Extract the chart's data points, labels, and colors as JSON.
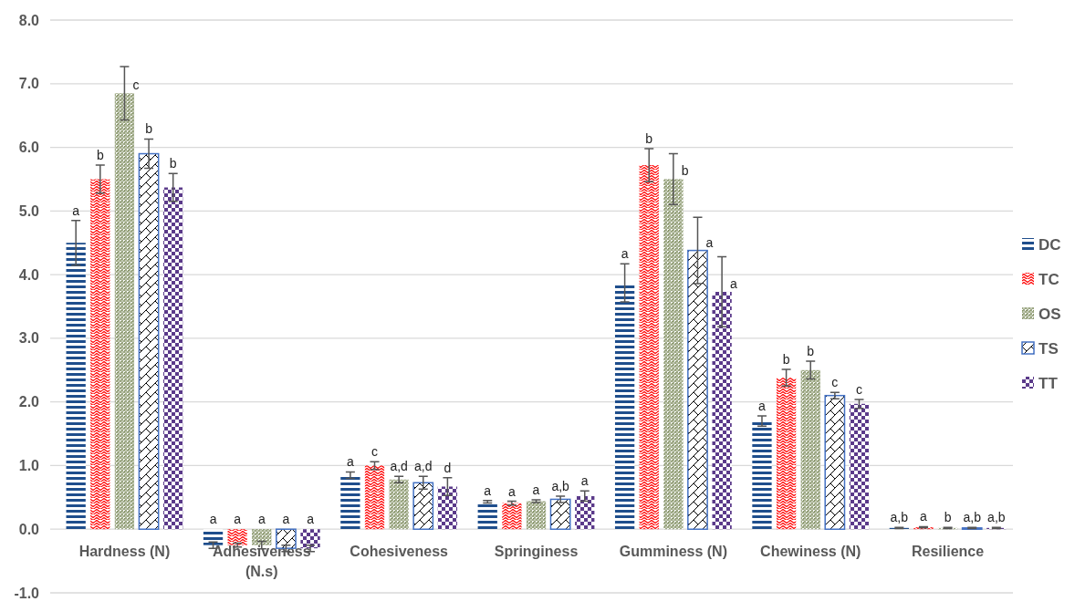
{
  "chart_data": {
    "type": "bar",
    "categories": [
      "Hardness (N)",
      "Adhesiveness (N.s)",
      "Cohesiveness",
      "Springiness",
      "Gumminess (N)",
      "Chewiness (N)",
      "Resilience"
    ],
    "series": [
      {
        "name": "DC",
        "color": "#1f4e8c",
        "values": [
          4.5,
          -0.25,
          0.85,
          0.43,
          3.87,
          1.7,
          0.02
        ],
        "errors": [
          0.35,
          0.05,
          0.05,
          0.02,
          0.3,
          0.08,
          0.01
        ],
        "value_labels": [
          "a",
          "a",
          "a",
          "a",
          "a",
          "a",
          "a,b"
        ]
      },
      {
        "name": "TC",
        "color": "#ff0000",
        "values": [
          5.5,
          -0.25,
          1.0,
          0.41,
          5.72,
          2.38,
          0.03
        ],
        "errors": [
          0.22,
          0.03,
          0.06,
          0.03,
          0.26,
          0.13,
          0.01
        ],
        "value_labels": [
          "b",
          "a",
          "c",
          "a",
          "b",
          "b",
          "a"
        ]
      },
      {
        "name": "OS",
        "color": "#7b8a5a",
        "values": [
          6.85,
          -0.25,
          0.78,
          0.44,
          5.5,
          2.5,
          0.02
        ],
        "errors": [
          0.42,
          0.06,
          0.05,
          0.02,
          0.4,
          0.14,
          0.01
        ],
        "value_labels": [
          "c",
          "a",
          "a,d",
          "a",
          "b",
          "b",
          "b"
        ]
      },
      {
        "name": "TS",
        "color": "#4472c4",
        "values": [
          5.9,
          -0.3,
          0.73,
          0.47,
          4.38,
          2.1,
          0.02
        ],
        "errors": [
          0.23,
          0.05,
          0.1,
          0.05,
          0.52,
          0.05,
          0.01
        ],
        "value_labels": [
          "b",
          "a",
          "a,d",
          "a,b",
          "a",
          "c",
          "a,b"
        ]
      },
      {
        "name": "TT",
        "color": "#5b3a8a",
        "values": [
          5.37,
          -0.3,
          0.67,
          0.52,
          3.73,
          1.97,
          0.02
        ],
        "errors": [
          0.22,
          0.05,
          0.14,
          0.08,
          0.55,
          0.07,
          0.01
        ],
        "value_labels": [
          "b",
          "a",
          "d",
          "a",
          "a",
          "c",
          "a,b"
        ]
      }
    ],
    "ylim": [
      -1,
      8
    ],
    "yticks": [
      {
        "value": -1,
        "label": "-1.0"
      },
      {
        "value": 0,
        "label": "0.0"
      },
      {
        "value": 1,
        "label": "1.0"
      },
      {
        "value": 2,
        "label": "2.0"
      },
      {
        "value": 3,
        "label": "3.0"
      },
      {
        "value": 4,
        "label": "4.0"
      },
      {
        "value": 5,
        "label": "5.0"
      },
      {
        "value": 6,
        "label": "6.0"
      },
      {
        "value": 7,
        "label": "7.0"
      },
      {
        "value": 8,
        "label": "8.0"
      }
    ],
    "grid": "y",
    "legend": "right"
  }
}
